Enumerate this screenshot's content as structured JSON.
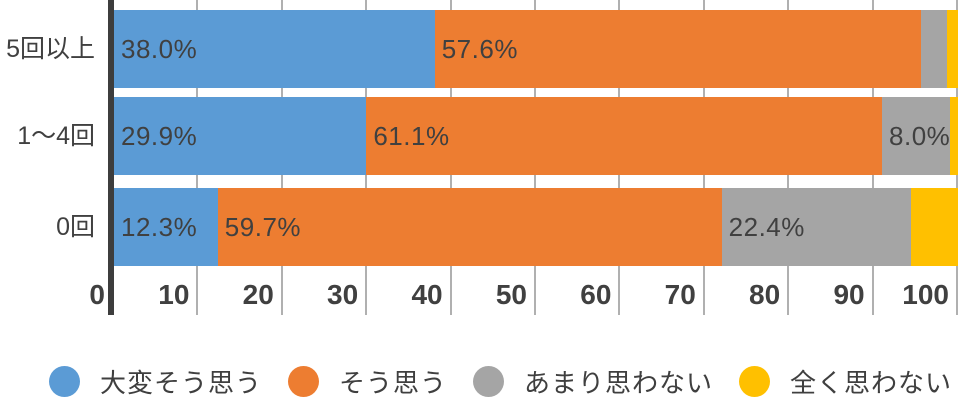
{
  "chart_data": {
    "type": "bar",
    "variant": "horizontal-stacked",
    "title": "",
    "xlabel": "",
    "ylabel": "",
    "categories": [
      "5回以上",
      "1〜4回",
      "0回"
    ],
    "series": [
      {
        "name": "大変そう思う",
        "color": "#5B9BD5",
        "values": [
          38.0,
          29.9,
          12.3
        ],
        "labels": [
          "38.0%",
          "29.9%",
          "12.3%"
        ]
      },
      {
        "name": "そう思う",
        "color": "#ED7D31",
        "values": [
          57.6,
          61.1,
          59.7
        ],
        "labels": [
          "57.6%",
          "61.1%",
          "59.7%"
        ]
      },
      {
        "name": "あまり思わない",
        "color": "#A5A5A5",
        "values": [
          3.1,
          8.0,
          22.4
        ],
        "labels": [
          "",
          "8.0%",
          "22.4%"
        ]
      },
      {
        "name": "全く思わない",
        "color": "#FFC000",
        "values": [
          1.3,
          1.0,
          5.6
        ],
        "labels": [
          "",
          "",
          ""
        ]
      }
    ],
    "xticks": [
      0,
      10,
      20,
      30,
      40,
      50,
      60,
      70,
      80,
      90,
      100
    ],
    "xlim": [
      0,
      100
    ],
    "grid": true,
    "legend_position": "bottom",
    "colors": {
      "background": "#FFFFFF",
      "axis_line": "#3D3D3D",
      "gridline": "#B0B0B0",
      "label_text": "#404040"
    }
  }
}
